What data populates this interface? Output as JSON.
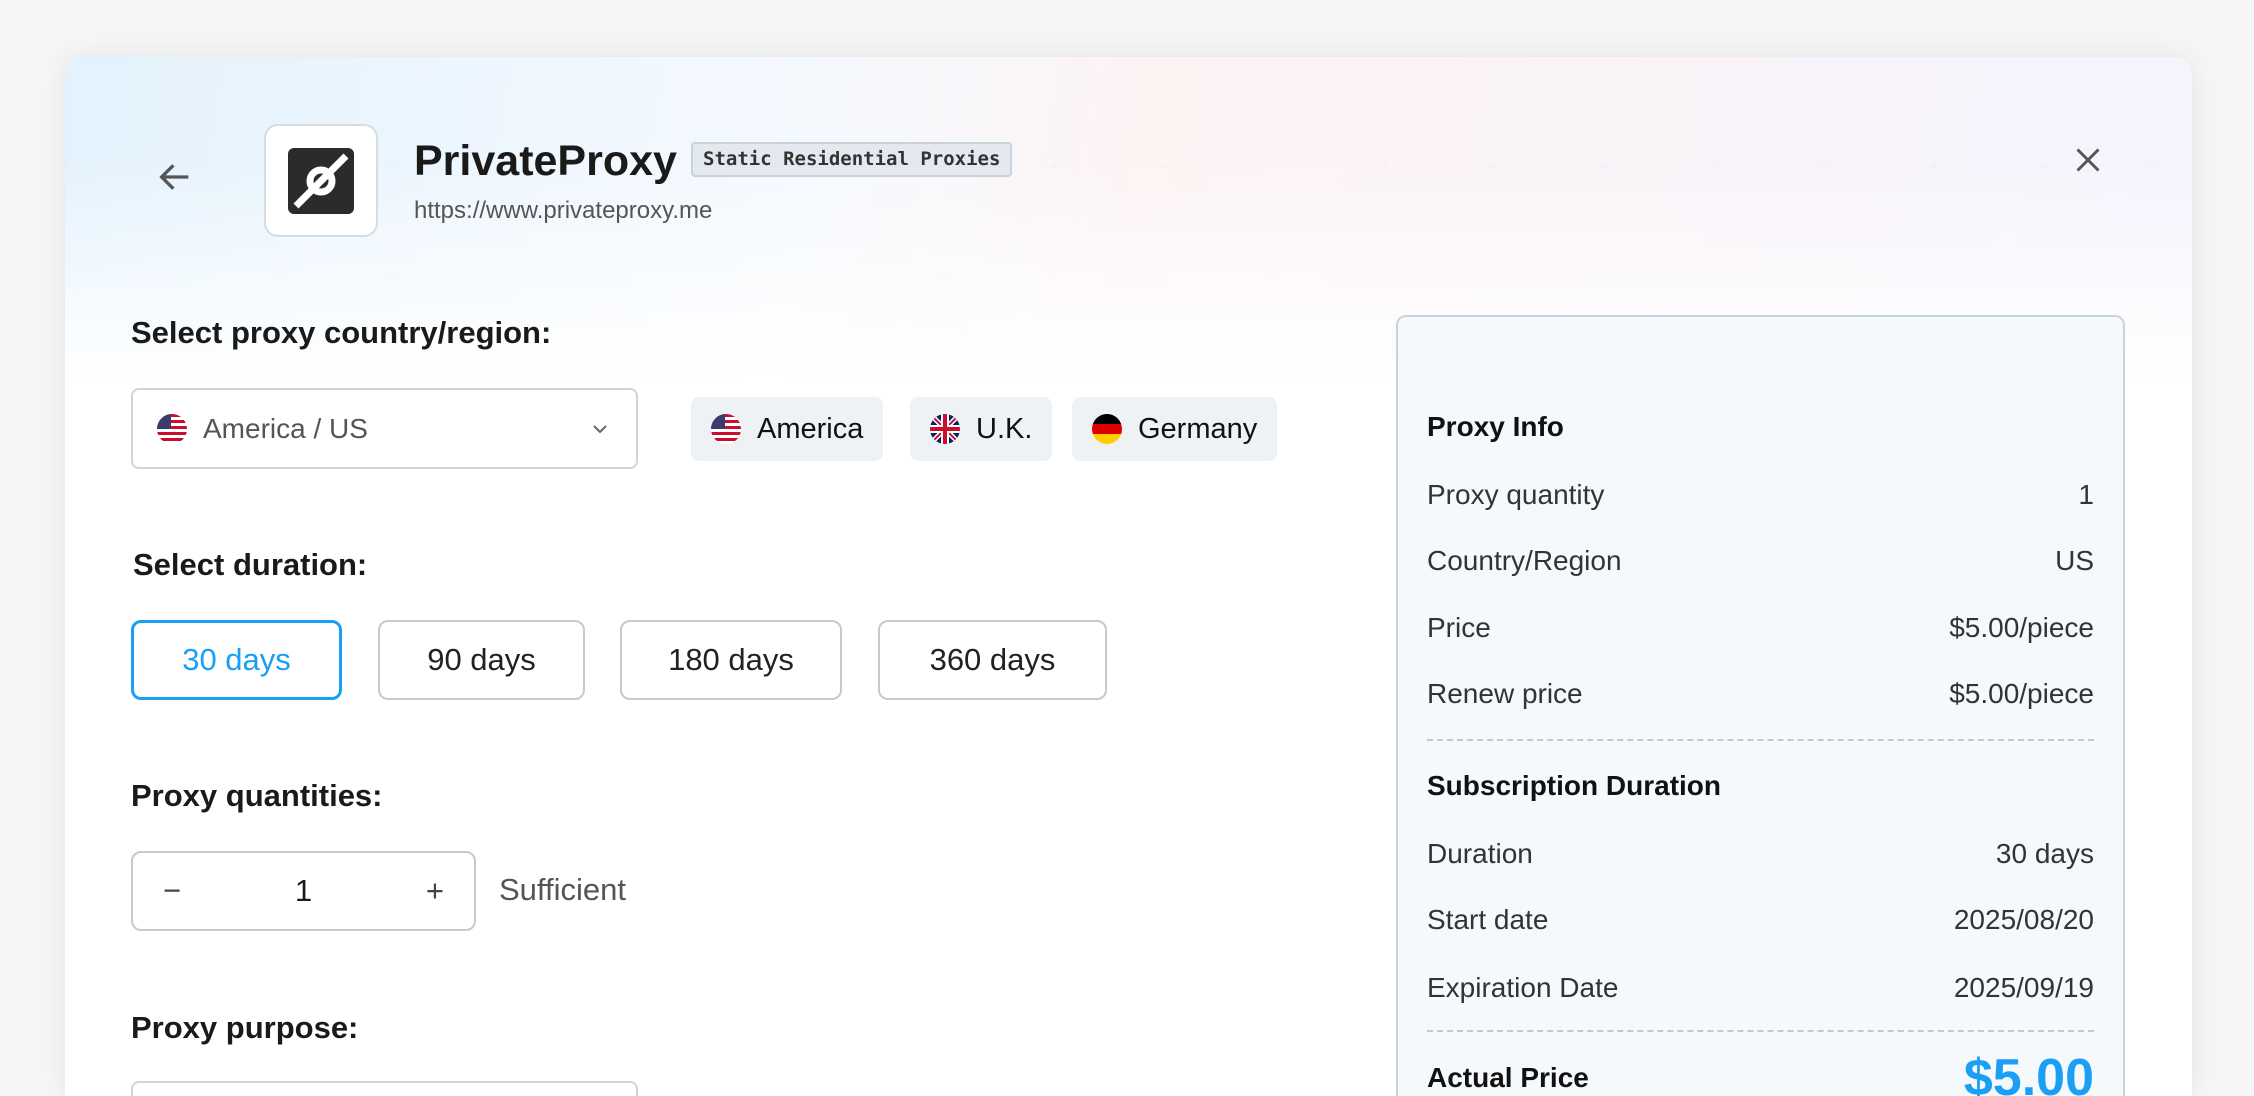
{
  "header": {
    "title": "PrivateProxy",
    "badge": "Static Residential Proxies",
    "url": "https://www.privateproxy.me",
    "back_icon": "arrow-left-icon",
    "close_icon": "close-icon"
  },
  "country": {
    "label": "Select proxy country/region:",
    "selected": "America / US",
    "quick": [
      {
        "label": "America",
        "flag": "us"
      },
      {
        "label": "U.K.",
        "flag": "uk"
      },
      {
        "label": "Germany",
        "flag": "de"
      }
    ]
  },
  "duration": {
    "label": "Select duration:",
    "options": [
      "30 days",
      "90 days",
      "180 days",
      "360 days"
    ],
    "selected": "30 days"
  },
  "quantity": {
    "label": "Proxy quantities:",
    "value": "1",
    "status": "Sufficient"
  },
  "purpose": {
    "label": "Proxy purpose:"
  },
  "info": {
    "title": "Proxy Info",
    "rows": [
      {
        "k": "Proxy quantity",
        "v": "1"
      },
      {
        "k": "Country/Region",
        "v": "US"
      },
      {
        "k": "Price",
        "v": "$5.00/piece"
      },
      {
        "k": "Renew price",
        "v": "$5.00/piece"
      }
    ],
    "sub_title": "Subscription Duration",
    "sub_rows": [
      {
        "k": "Duration",
        "v": "30 days"
      },
      {
        "k": "Start date",
        "v": "2025/08/20"
      },
      {
        "k": "Expiration Date",
        "v": "2025/09/19"
      }
    ],
    "actual_label": "Actual Price",
    "actual_value": "$5.00"
  },
  "colors": {
    "accent": "#1a9ff5"
  }
}
